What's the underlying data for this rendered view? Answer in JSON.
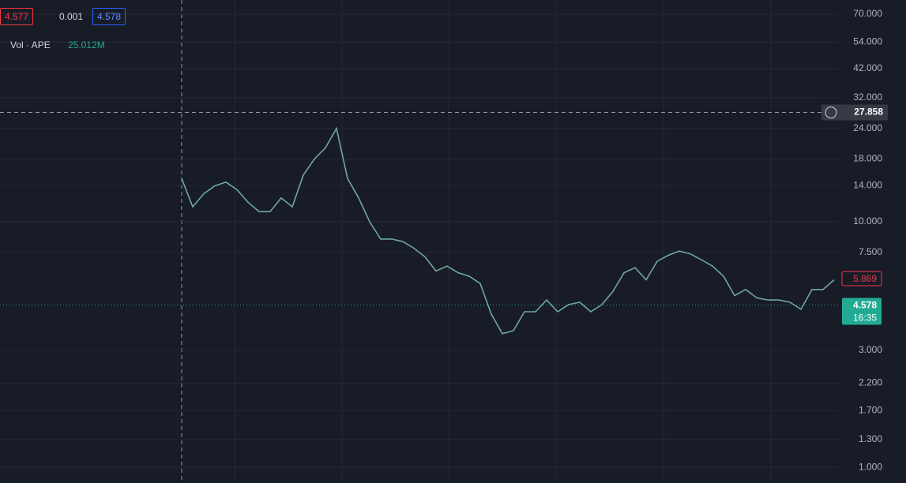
{
  "legend": {
    "open_box": "4.577",
    "change": "0.001",
    "close_box": "4.578",
    "volume_label": "Vol · APE",
    "volume_value": "25.012M"
  },
  "chart_data": {
    "type": "line",
    "log_scale": true,
    "grid": true,
    "color": "#6fa89c",
    "x": [
      0,
      1,
      2,
      3,
      4,
      5,
      6,
      7,
      8,
      9,
      10,
      11,
      12,
      13,
      14,
      15,
      16,
      17,
      18,
      19,
      20,
      21,
      22,
      23,
      24,
      25,
      26,
      27,
      28,
      29,
      30,
      31,
      32,
      33,
      34,
      35,
      36,
      37,
      38,
      39,
      40,
      41,
      42,
      43,
      44,
      45,
      46,
      47,
      48,
      49,
      50,
      51,
      52,
      53,
      54,
      55,
      56,
      57,
      58,
      59
    ],
    "xlim": [
      -16.43,
      59.43
    ],
    "values": [
      15,
      11.5,
      13,
      14,
      14.5,
      13.5,
      12,
      11,
      11,
      12.5,
      11.5,
      15.5,
      18,
      20,
      24,
      15,
      12.5,
      10,
      8.5,
      8.5,
      8.3,
      7.8,
      7.2,
      6.3,
      6.6,
      6.2,
      6.0,
      5.6,
      4.2,
      3.5,
      3.6,
      4.3,
      4.3,
      4.8,
      4.3,
      4.6,
      4.7,
      4.3,
      4.6,
      5.2,
      6.2,
      6.5,
      5.8,
      6.9,
      7.3,
      7.6,
      7.4,
      7.0,
      6.6,
      6.0,
      5.0,
      5.3,
      4.9,
      4.8,
      4.8,
      4.7,
      4.4,
      5.3,
      5.3,
      5.8
    ],
    "ylim": [
      0.863,
      80
    ],
    "yticks": [
      {
        "value": 70,
        "label": "70.000"
      },
      {
        "value": 54,
        "label": "54.000"
      },
      {
        "value": 42,
        "label": "42.000"
      },
      {
        "value": 32,
        "label": "32.000"
      },
      {
        "value": 24,
        "label": "24.000"
      },
      {
        "value": 18,
        "label": "18.000"
      },
      {
        "value": 14,
        "label": "14.000"
      },
      {
        "value": 10,
        "label": "10.000"
      },
      {
        "value": 7.5,
        "label": "7.500"
      },
      {
        "value": 3,
        "label": "3.000"
      },
      {
        "value": 2.2,
        "label": "2.200"
      },
      {
        "value": 1.7,
        "label": "1.700"
      },
      {
        "value": 1.3,
        "label": "1.300"
      },
      {
        "value": 1,
        "label": "1.000"
      }
    ],
    "crosshair": 27.858,
    "price_labels": [
      {
        "value": 5.869,
        "color": "#f23645"
      },
      {
        "value": 4.578,
        "time": "16:35",
        "color": "#22ab94"
      }
    ]
  }
}
